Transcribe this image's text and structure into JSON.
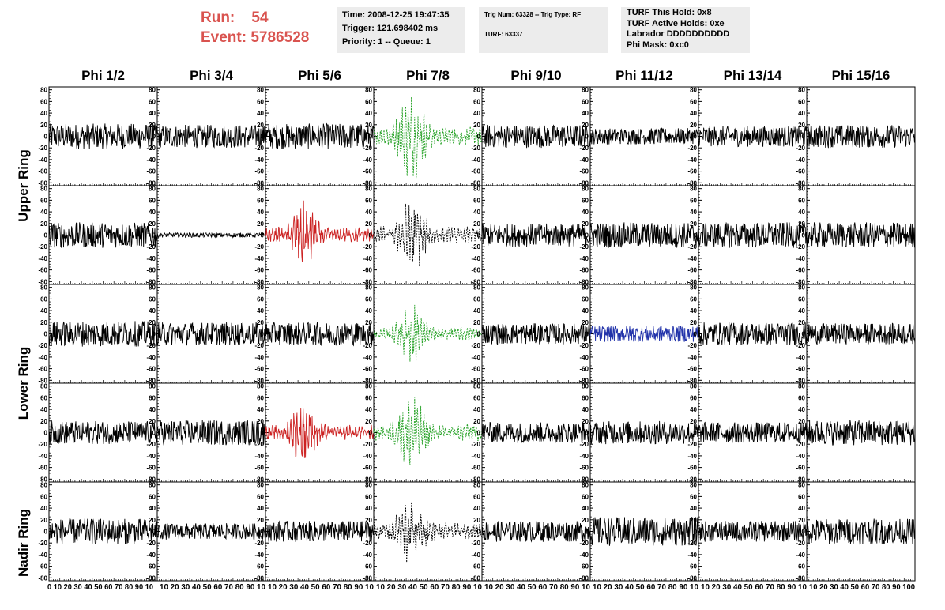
{
  "run": {
    "run_label": "Run:",
    "run_value": "54",
    "event_label": "Event:",
    "event_value": "5786528"
  },
  "info_time": {
    "line1": "Time: 2008-12-25 19:47:35",
    "line2": "Trigger: 121.698402 ms",
    "line3": "Priority: 1 -- Queue: 1"
  },
  "info_trig": {
    "line1": "Trig Num: 63328 -- Trig Type: RF",
    "line2": "TURF: 63337"
  },
  "info_turf": {
    "line1": "TURF This Hold: 0x8",
    "line2": "TURF Active Holds: 0xe",
    "line3": "Labrador DDDDDDDDDD",
    "line4": "Phi Mask: 0xc0"
  },
  "columns": [
    "Phi 1/2",
    "Phi 3/4",
    "Phi 5/6",
    "Phi 7/8",
    "Phi 9/10",
    "Phi 11/12",
    "Phi 13/14",
    "Phi 15/16"
  ],
  "ring_labels": [
    "Upper Ring",
    "Lower Ring",
    "Nadir Ring"
  ],
  "colors": {
    "background": "#ffffff",
    "info_box": "#ececec",
    "run_text": "#d9534f",
    "trace_default": "#000000",
    "trace_red": "#cc2222",
    "trace_green": "#22a022",
    "trace_blue": "#2233aa"
  },
  "chart_data": {
    "type": "line",
    "xlim": [
      0,
      100
    ],
    "ylim": [
      -85,
      85
    ],
    "y_ticks": [
      -80,
      -60,
      -40,
      -20,
      0,
      20,
      40,
      60,
      80
    ],
    "x_tick_labels": [
      "0",
      "10",
      "20",
      "30",
      "40",
      "50",
      "60",
      "70",
      "80",
      "90",
      "100"
    ],
    "x_axis_text": [
      "0 10 20 30 40 50 60 70 80 90 10",
      "10 20 30 40 50 60 70 80 90 10",
      "10 20 30 40 50 60 70 80 90 10",
      "10 20 30 40 50 60 70 80 90 10",
      "10 20 30 40 50 60 70 80 90 10",
      "10 20 30 40 50 60 70 80 90 10",
      "10 20 30 40 50 60 70 80 90 10",
      "10 20 30 40 50 60 70 80 90 100"
    ],
    "panel_rows": 5,
    "panel_cols": 8,
    "panels": [
      [
        {
          "style": "black",
          "amp": 22
        },
        {
          "style": "black",
          "amp": 20
        },
        {
          "style": "black",
          "amp": 22
        },
        {
          "style": "green-dashed",
          "amp": 45,
          "burst": true
        },
        {
          "style": "black",
          "amp": 20
        },
        {
          "style": "black",
          "amp": 14
        },
        {
          "style": "black",
          "amp": 18
        },
        {
          "style": "black",
          "amp": 20
        }
      ],
      [
        {
          "style": "black",
          "amp": 22
        },
        {
          "style": "black",
          "amp": 4
        },
        {
          "style": "red",
          "amp": 35,
          "burst": true
        },
        {
          "style": "black-dashed",
          "amp": 40,
          "burst": true
        },
        {
          "style": "black",
          "amp": 20
        },
        {
          "style": "black",
          "amp": 22
        },
        {
          "style": "black",
          "amp": 22
        },
        {
          "style": "black",
          "amp": 22
        }
      ],
      [
        {
          "style": "black",
          "amp": 22
        },
        {
          "style": "black",
          "amp": 20
        },
        {
          "style": "black",
          "amp": 20
        },
        {
          "style": "green-dashed",
          "amp": 30,
          "burst": true
        },
        {
          "style": "black",
          "amp": 18
        },
        {
          "style": "blue",
          "amp": 14
        },
        {
          "style": "black",
          "amp": 20
        },
        {
          "style": "black",
          "amp": 18
        }
      ],
      [
        {
          "style": "black",
          "amp": 20
        },
        {
          "style": "black",
          "amp": 22
        },
        {
          "style": "red",
          "amp": 35,
          "burst": true
        },
        {
          "style": "green-dashed",
          "amp": 40,
          "burst": true
        },
        {
          "style": "black",
          "amp": 18
        },
        {
          "style": "black",
          "amp": 20
        },
        {
          "style": "black",
          "amp": 18
        },
        {
          "style": "black",
          "amp": 22
        }
      ],
      [
        {
          "style": "black",
          "amp": 22
        },
        {
          "style": "black",
          "amp": 14
        },
        {
          "style": "black",
          "amp": 18
        },
        {
          "style": "black-dashed",
          "amp": 40,
          "burst": true
        },
        {
          "style": "black",
          "amp": 18
        },
        {
          "style": "black",
          "amp": 25
        },
        {
          "style": "black",
          "amp": 18
        },
        {
          "style": "black",
          "amp": 22
        }
      ]
    ]
  }
}
